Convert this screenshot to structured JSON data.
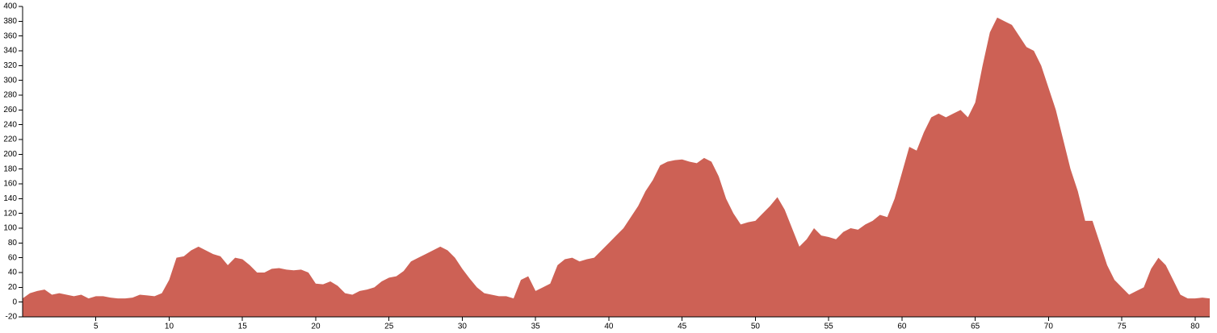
{
  "chart_data": {
    "type": "area",
    "color": "#cd6155",
    "x": [
      0,
      0.5,
      1,
      1.5,
      2,
      2.5,
      3,
      3.5,
      4,
      4.5,
      5,
      5.5,
      6,
      6.5,
      7,
      7.5,
      8,
      8.5,
      9,
      9.5,
      10,
      10.5,
      11,
      11.5,
      12,
      12.5,
      13,
      13.5,
      14,
      14.5,
      15,
      15.5,
      16,
      16.5,
      17,
      17.5,
      18,
      18.5,
      19,
      19.5,
      20,
      20.5,
      21,
      21.5,
      22,
      22.5,
      23,
      23.5,
      24,
      24.5,
      25,
      25.5,
      26,
      26.5,
      27,
      27.5,
      28,
      28.5,
      29,
      29.5,
      30,
      30.5,
      31,
      31.5,
      32,
      32.5,
      33,
      33.5,
      34,
      34.5,
      35,
      35.5,
      36,
      36.5,
      37,
      37.5,
      38,
      38.5,
      39,
      39.5,
      40,
      40.5,
      41,
      41.5,
      42,
      42.5,
      43,
      43.5,
      44,
      44.5,
      45,
      45.5,
      46,
      46.5,
      47,
      47.5,
      48,
      48.5,
      49,
      49.5,
      50,
      50.5,
      51,
      51.5,
      52,
      52.5,
      53,
      53.5,
      54,
      54.5,
      55,
      55.5,
      56,
      56.5,
      57,
      57.5,
      58,
      58.5,
      59,
      59.5,
      60,
      60.5,
      61,
      61.5,
      62,
      62.5,
      63,
      63.5,
      64,
      64.5,
      65,
      65.5,
      66,
      66.5,
      67,
      67.5,
      68,
      68.5,
      69,
      69.5,
      70,
      70.5,
      71,
      71.5,
      72,
      72.5,
      73,
      73.5,
      74,
      74.5,
      75,
      75.5,
      76,
      76.5,
      77,
      77.5,
      78,
      78.5,
      79,
      79.5,
      80,
      80.5,
      81
    ],
    "values": [
      5,
      12,
      15,
      17,
      10,
      12,
      10,
      8,
      10,
      5,
      8,
      8,
      6,
      5,
      5,
      6,
      10,
      9,
      8,
      12,
      30,
      60,
      62,
      70,
      75,
      70,
      65,
      62,
      50,
      60,
      58,
      50,
      40,
      40,
      45,
      46,
      44,
      43,
      44,
      40,
      25,
      24,
      28,
      22,
      12,
      10,
      15,
      17,
      20,
      28,
      33,
      35,
      42,
      55,
      60,
      65,
      70,
      75,
      70,
      60,
      45,
      32,
      20,
      12,
      10,
      8,
      8,
      5,
      30,
      35,
      15,
      20,
      25,
      50,
      58,
      60,
      55,
      58,
      60,
      70,
      80,
      90,
      100,
      115,
      130,
      150,
      165,
      185,
      190,
      192,
      193,
      190,
      188,
      195,
      190,
      170,
      140,
      120,
      105,
      108,
      110,
      120,
      130,
      142,
      125,
      100,
      75,
      85,
      100,
      90,
      88,
      85,
      95,
      100,
      98,
      105,
      110,
      118,
      115,
      140,
      175,
      210,
      205,
      230,
      250,
      255,
      250,
      255,
      260,
      250,
      270,
      320,
      365,
      385,
      380,
      375,
      360,
      345,
      340,
      320,
      290,
      260,
      220,
      180,
      150,
      110,
      110,
      80,
      50,
      30,
      20,
      10,
      15,
      20,
      45,
      60,
      50,
      30,
      10,
      5,
      5,
      6,
      5
    ],
    "xlim": [
      0,
      81
    ],
    "xticks": [
      5,
      10,
      15,
      20,
      25,
      30,
      35,
      40,
      45,
      50,
      55,
      60,
      65,
      70,
      75,
      80
    ],
    "ylim": [
      -20,
      400
    ],
    "yticks": [
      -20,
      0,
      20,
      40,
      60,
      80,
      100,
      120,
      140,
      160,
      180,
      200,
      220,
      240,
      260,
      280,
      300,
      320,
      340,
      360,
      380,
      400
    ]
  }
}
